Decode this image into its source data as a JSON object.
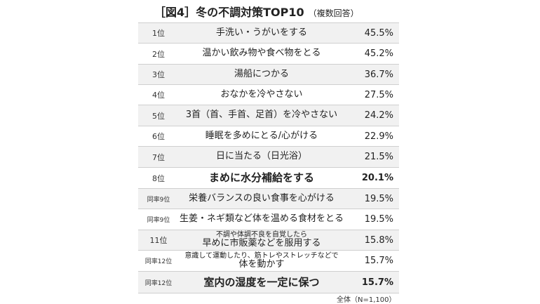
{
  "title": {
    "main": "［図4］冬の不調対策TOP10",
    "sub": "（複数回答）"
  },
  "rows": [
    {
      "rank": "1位",
      "lines": [
        "手洗い・うがいをする"
      ],
      "pct": "45.5%"
    },
    {
      "rank": "2位",
      "lines": [
        "温かい飲み物や食べ物をとる"
      ],
      "pct": "45.2%"
    },
    {
      "rank": "3位",
      "lines": [
        "湯船につかる"
      ],
      "pct": "36.7%"
    },
    {
      "rank": "4位",
      "lines": [
        "おなかを冷やさない"
      ],
      "pct": "27.5%"
    },
    {
      "rank": "5位",
      "lines": [
        "3首（首、手首、足首）を冷やさない"
      ],
      "pct": "24.2%"
    },
    {
      "rank": "6位",
      "lines": [
        "睡眠を多めにとる/心がける"
      ],
      "pct": "22.9%"
    },
    {
      "rank": "7位",
      "lines": [
        "日に当たる（日光浴）"
      ],
      "pct": "21.5%"
    },
    {
      "rank": "8位",
      "lines": [
        "まめに水分補給をする"
      ],
      "pct": "20.1%",
      "bold": true
    },
    {
      "rank": "同率9位",
      "lines": [
        "栄養バランスの良い食事を心がける"
      ],
      "pct": "19.5%"
    },
    {
      "rank": "同率9位",
      "lines": [
        "生姜・ネギ類など体を温める食材をとる"
      ],
      "pct": "19.5%"
    },
    {
      "rank": "11位",
      "lines": [
        "不調や体調不良を自覚したら",
        "早めに市販薬などを服用する"
      ],
      "pct": "15.8%"
    },
    {
      "rank": "同率12位",
      "lines": [
        "意識して運動したり、筋トレやストレッチなどで",
        "体を動かす"
      ],
      "pct": "15.7%"
    },
    {
      "rank": "同率12位",
      "lines": [
        "室内の湿度を一定に保つ"
      ],
      "pct": "15.7%",
      "bold": true
    }
  ],
  "note": "全体（N=1,100）"
}
